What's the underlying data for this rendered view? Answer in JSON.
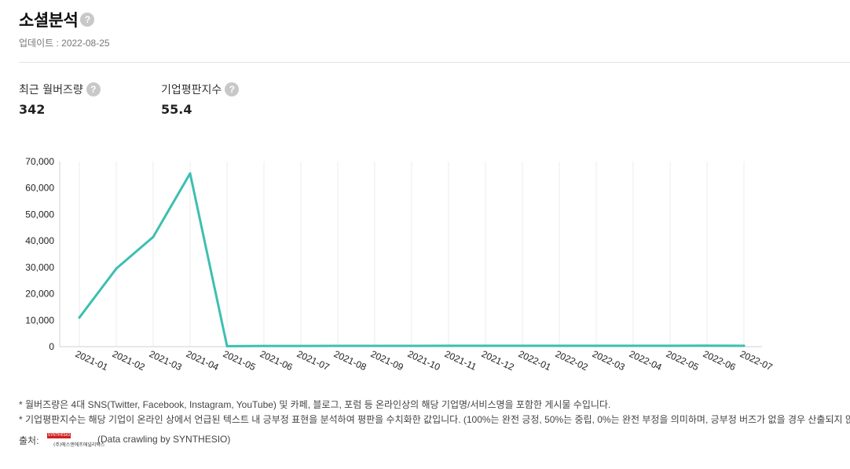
{
  "header": {
    "title": "소셜분석",
    "help_glyph": "?",
    "updated": "업데이트 : 2022-08-25"
  },
  "stats": [
    {
      "label": "최근 월버즈량",
      "value": "342"
    },
    {
      "label": "기업평판지수",
      "value": "55.4"
    }
  ],
  "chart_data": {
    "type": "line",
    "x": [
      "2021-01",
      "2021-02",
      "2021-03",
      "2021-04",
      "2021-05",
      "2021-06",
      "2021-07",
      "2021-08",
      "2021-09",
      "2021-10",
      "2021-11",
      "2021-12",
      "2022-01",
      "2022-02",
      "2022-03",
      "2022-04",
      "2022-05",
      "2022-06",
      "2022-07"
    ],
    "series": [
      {
        "values": [
          11000,
          29500,
          41500,
          65500,
          200,
          250,
          250,
          280,
          300,
          300,
          320,
          320,
          320,
          330,
          330,
          330,
          330,
          380,
          342
        ]
      }
    ],
    "ylim": [
      0,
      70000
    ],
    "yticks": [
      "0",
      "10,000",
      "20,000",
      "30,000",
      "40,000",
      "50,000",
      "60,000",
      "70,000"
    ],
    "line_color": "#3dbfb1",
    "grid": "vertical"
  },
  "notes": [
    "* 월버즈량은 4대 SNS(Twitter, Facebook, Instagram, YouTube) 및 카페, 블로그, 포럼 등 온라인상의 해당 기업명/서비스명을 포함한 게시물 수입니다.",
    "* 기업평판지수는 해당 기업이 온라인 상에서 언급된 텍스트 내 긍부정 표현을 분석하여 평판을 수치화한 값입니다. (100%는 완전 긍정, 50%는 중립, 0%는 완전 부정을 의미하며, 긍부정 버즈가 없을 경우 산출되지 않습니다.)"
  ],
  "source": {
    "label": "출처:",
    "logo_top": "SYNTHESIO",
    "logo_bottom": "(주)에스앤에프애널리틱스",
    "crawl_text": "(Data crawling by SYNTHESIO)"
  },
  "colors": {
    "accent": "#3dbfb1",
    "logo_red": "#d21f1f"
  }
}
